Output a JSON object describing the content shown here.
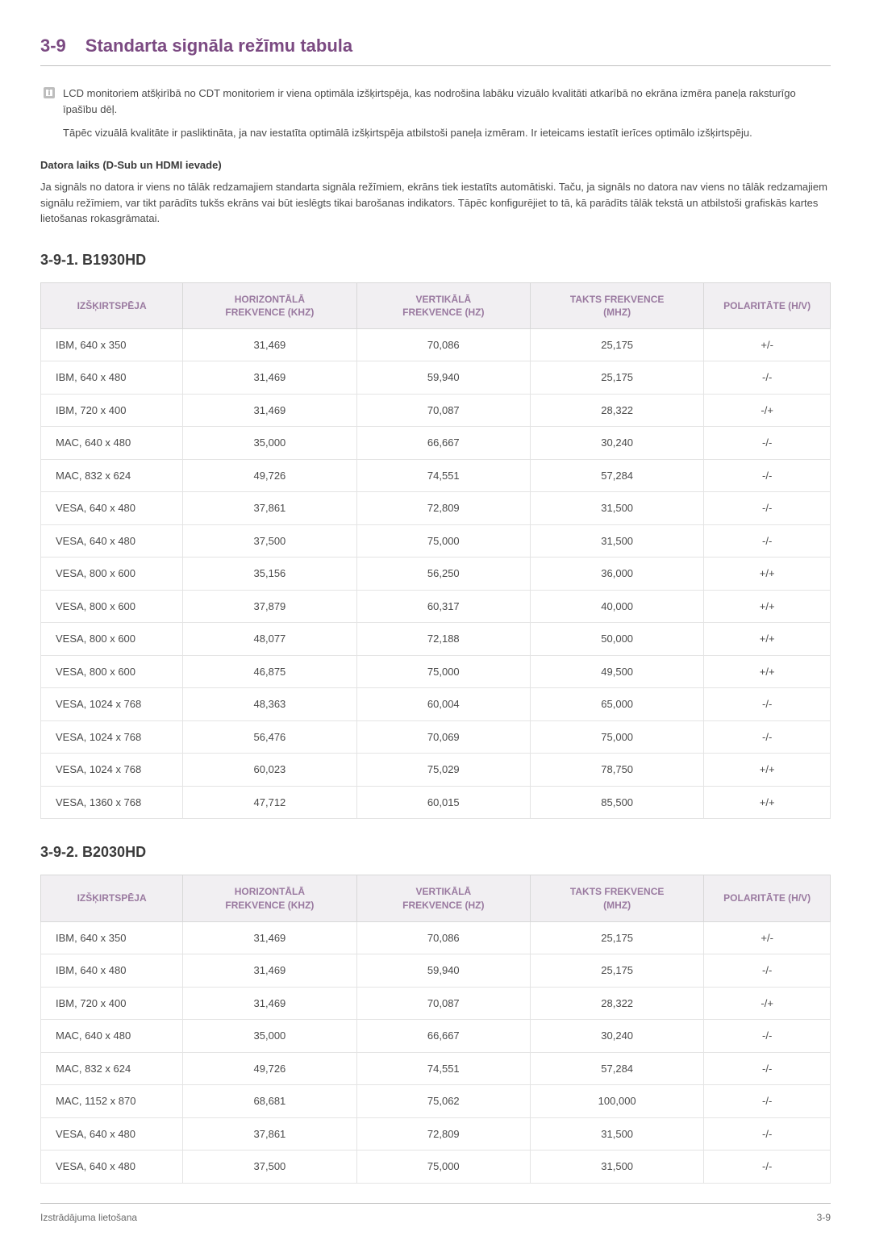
{
  "header": {
    "number": "3-9",
    "title": "Standarta signāla režīmu tabula"
  },
  "note": {
    "para1": "LCD monitoriem atšķirībā no CDT monitoriem ir viena optimāla izšķirtspēja, kas nodrošina labāku vizuālo kvalitāti atkarībā no ekrāna izmēra paneļa raksturīgo īpašību dēļ.",
    "para2": "Tāpēc vizuālā kvalitāte ir pasliktināta, ja nav iestatīta optimālā izšķirtspēja atbilstoši paneļa izmēram. Ir ieteicams iestatīt ierīces optimālo izšķirtspēju."
  },
  "pc_timing": {
    "heading": "Datora laiks (D-Sub un HDMI ievade)",
    "body": "Ja signāls no datora ir viens no tālāk redzamajiem standarta signāla režīmiem, ekrāns tiek iestatīts automātiski. Taču, ja signāls no datora nav viens no tālāk redzamajiem signālu režīmiem, var tikt parādīts tukšs ekrāns vai būt ieslēgts tikai barošanas indikators. Tāpēc konfigurējiet to tā, kā parādīts tālāk tekstā un atbilstoši grafiskās kartes lietošanas rokasgrāmatai."
  },
  "columns": {
    "resolution": "IZŠĶIRTSPĒJA",
    "hfreq_l1": "HORIZONTĀLĀ",
    "hfreq_l2": "FREKVENCE (KHZ)",
    "vfreq_l1": "VERTIKĀLĀ",
    "vfreq_l2": "FREKVENCE (HZ)",
    "clock_l1": "TAKTS FREKVENCE",
    "clock_l2": "(MHZ)",
    "polarity": "POLARITĀTE (H/V)"
  },
  "tables": [
    {
      "title": "3-9-1. B1930HD",
      "rows": [
        {
          "res": "IBM, 640 x 350",
          "h": "31,469",
          "v": "70,086",
          "clk": "25,175",
          "pol": "+/-"
        },
        {
          "res": "IBM, 640 x 480",
          "h": "31,469",
          "v": "59,940",
          "clk": "25,175",
          "pol": "-/-"
        },
        {
          "res": "IBM, 720 x 400",
          "h": "31,469",
          "v": "70,087",
          "clk": "28,322",
          "pol": "-/+"
        },
        {
          "res": "MAC, 640 x 480",
          "h": "35,000",
          "v": "66,667",
          "clk": "30,240",
          "pol": "-/-"
        },
        {
          "res": "MAC, 832 x 624",
          "h": "49,726",
          "v": "74,551",
          "clk": "57,284",
          "pol": "-/-"
        },
        {
          "res": "VESA, 640 x 480",
          "h": "37,861",
          "v": "72,809",
          "clk": "31,500",
          "pol": "-/-"
        },
        {
          "res": "VESA, 640 x 480",
          "h": "37,500",
          "v": "75,000",
          "clk": "31,500",
          "pol": "-/-"
        },
        {
          "res": "VESA, 800 x 600",
          "h": "35,156",
          "v": "56,250",
          "clk": "36,000",
          "pol": "+/+"
        },
        {
          "res": "VESA, 800 x 600",
          "h": "37,879",
          "v": "60,317",
          "clk": "40,000",
          "pol": "+/+"
        },
        {
          "res": "VESA, 800 x 600",
          "h": "48,077",
          "v": "72,188",
          "clk": "50,000",
          "pol": "+/+"
        },
        {
          "res": "VESA, 800 x 600",
          "h": "46,875",
          "v": "75,000",
          "clk": "49,500",
          "pol": "+/+"
        },
        {
          "res": "VESA, 1024 x 768",
          "h": "48,363",
          "v": "60,004",
          "clk": "65,000",
          "pol": "-/-"
        },
        {
          "res": "VESA, 1024 x 768",
          "h": "56,476",
          "v": "70,069",
          "clk": "75,000",
          "pol": "-/-"
        },
        {
          "res": "VESA, 1024 x 768",
          "h": "60,023",
          "v": "75,029",
          "clk": "78,750",
          "pol": "+/+"
        },
        {
          "res": "VESA, 1360 x 768",
          "h": "47,712",
          "v": "60,015",
          "clk": "85,500",
          "pol": "+/+"
        }
      ]
    },
    {
      "title": "3-9-2. B2030HD",
      "rows": [
        {
          "res": "IBM, 640 x 350",
          "h": "31,469",
          "v": "70,086",
          "clk": "25,175",
          "pol": "+/-"
        },
        {
          "res": "IBM, 640 x 480",
          "h": "31,469",
          "v": "59,940",
          "clk": "25,175",
          "pol": "-/-"
        },
        {
          "res": "IBM, 720 x 400",
          "h": "31,469",
          "v": "70,087",
          "clk": "28,322",
          "pol": "-/+"
        },
        {
          "res": "MAC, 640 x 480",
          "h": "35,000",
          "v": "66,667",
          "clk": "30,240",
          "pol": "-/-"
        },
        {
          "res": "MAC, 832 x 624",
          "h": "49,726",
          "v": "74,551",
          "clk": "57,284",
          "pol": "-/-"
        },
        {
          "res": "MAC, 1152 x 870",
          "h": "68,681",
          "v": "75,062",
          "clk": "100,000",
          "pol": "-/-"
        },
        {
          "res": "VESA, 640 x 480",
          "h": "37,861",
          "v": "72,809",
          "clk": "31,500",
          "pol": "-/-"
        },
        {
          "res": "VESA, 640 x 480",
          "h": "37,500",
          "v": "75,000",
          "clk": "31,500",
          "pol": "-/-"
        }
      ]
    }
  ],
  "footer": {
    "left": "Izstrādājuma lietošana",
    "right": "3-9"
  }
}
